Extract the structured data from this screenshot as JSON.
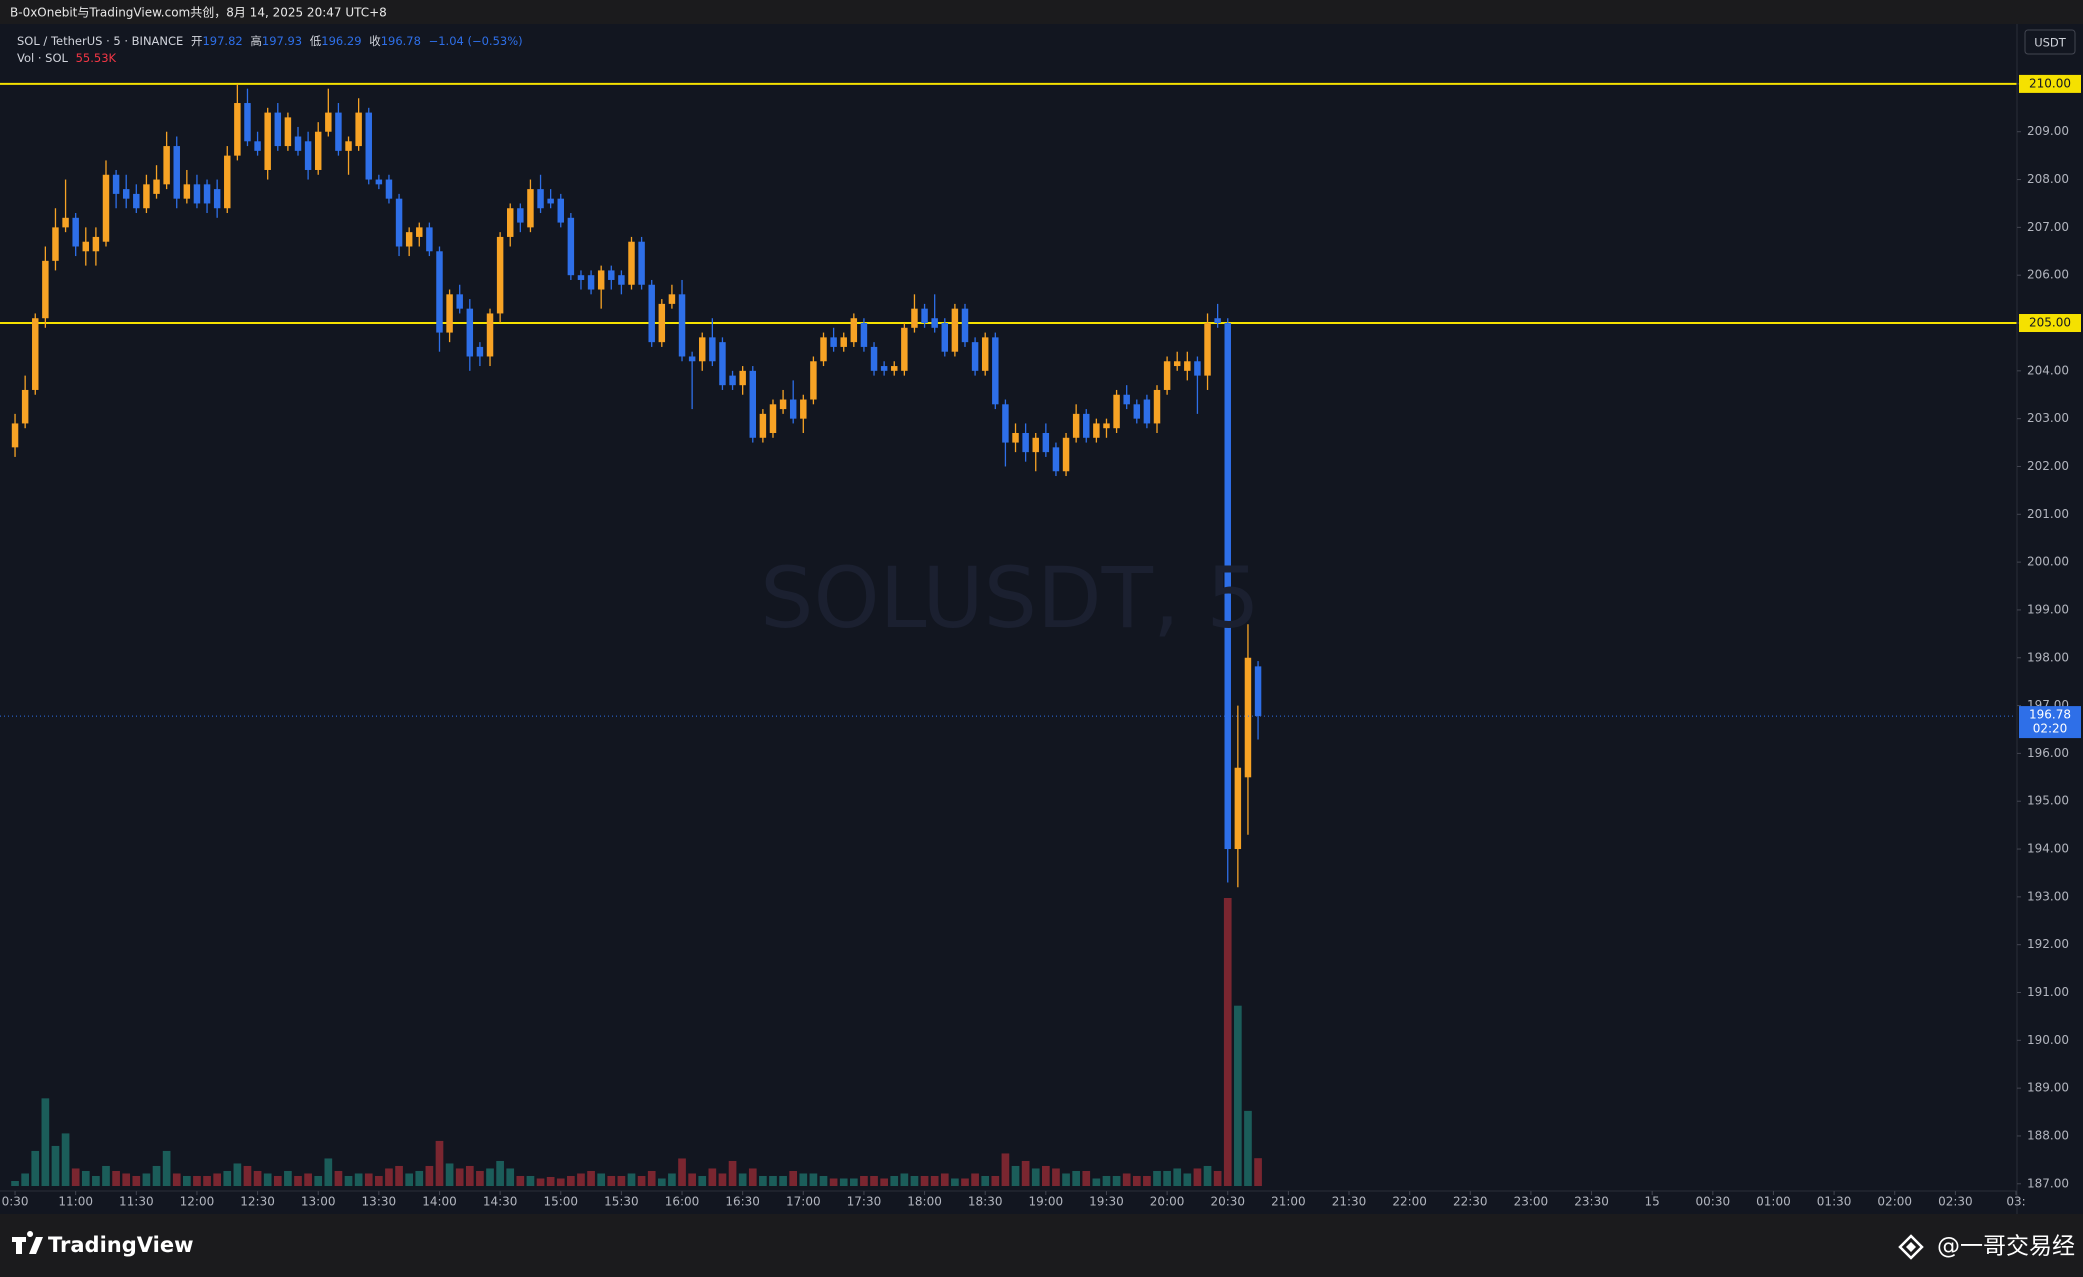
{
  "header": {
    "text": "B-0xOnebit与TradingView.com共创，8月 14, 2025 20:47 UTC+8"
  },
  "legend": {
    "symbol": "SOL / TetherUS · 5 · BINANCE",
    "open_label": "开",
    "open": 197.82,
    "high_label": "高",
    "high": 197.93,
    "low_label": "低",
    "low": 196.29,
    "close_label": "收",
    "close": 196.78,
    "change": "−1.04 (−0.53%)",
    "vol_label": "Vol · SOL",
    "vol": "55.53K"
  },
  "footer": {
    "brand": "TradingView",
    "author": "@一哥交易经"
  },
  "chart_data": {
    "type": "candlestick",
    "watermark": "SOLUSDT, 5",
    "currency": "USDT",
    "up_color": "#f7a325",
    "down_color": "#2e6fe8",
    "vol_up_color": "#1b5d5a",
    "vol_down_color": "#7a2630",
    "xlim": [
      628,
      1620
    ],
    "xticks": [
      {
        "value": 630,
        "label": "0:30"
      },
      {
        "value": 660,
        "label": "11:00"
      },
      {
        "value": 690,
        "label": "11:30"
      },
      {
        "value": 720,
        "label": "12:00"
      },
      {
        "value": 750,
        "label": "12:30"
      },
      {
        "value": 780,
        "label": "13:00"
      },
      {
        "value": 810,
        "label": "13:30"
      },
      {
        "value": 840,
        "label": "14:00"
      },
      {
        "value": 870,
        "label": "14:30"
      },
      {
        "value": 900,
        "label": "15:00"
      },
      {
        "value": 930,
        "label": "15:30"
      },
      {
        "value": 960,
        "label": "16:00"
      },
      {
        "value": 990,
        "label": "16:30"
      },
      {
        "value": 1020,
        "label": "17:00"
      },
      {
        "value": 1050,
        "label": "17:30"
      },
      {
        "value": 1080,
        "label": "18:00"
      },
      {
        "value": 1110,
        "label": "18:30"
      },
      {
        "value": 1140,
        "label": "19:00"
      },
      {
        "value": 1170,
        "label": "19:30"
      },
      {
        "value": 1200,
        "label": "20:00"
      },
      {
        "value": 1230,
        "label": "20:30"
      },
      {
        "value": 1260,
        "label": "21:00"
      },
      {
        "value": 1290,
        "label": "21:30"
      },
      {
        "value": 1320,
        "label": "22:00"
      },
      {
        "value": 1350,
        "label": "22:30"
      },
      {
        "value": 1380,
        "label": "23:00"
      },
      {
        "value": 1410,
        "label": "23:30"
      },
      {
        "value": 1440,
        "label": "15"
      },
      {
        "value": 1470,
        "label": "00:30"
      },
      {
        "value": 1500,
        "label": "01:00"
      },
      {
        "value": 1530,
        "label": "01:30"
      },
      {
        "value": 1560,
        "label": "02:00"
      },
      {
        "value": 1590,
        "label": "02:30"
      },
      {
        "value": 1620,
        "label": "03:"
      }
    ],
    "ylim": [
      186.87,
      211.19
    ],
    "yticks": [
      {
        "value": 187,
        "label": "187.00"
      },
      {
        "value": 188,
        "label": "188.00"
      },
      {
        "value": 189,
        "label": "189.00"
      },
      {
        "value": 190,
        "label": "190.00"
      },
      {
        "value": 191,
        "label": "191.00"
      },
      {
        "value": 192,
        "label": "192.00"
      },
      {
        "value": 193,
        "label": "193.00"
      },
      {
        "value": 194,
        "label": "194.00"
      },
      {
        "value": 195,
        "label": "195.00"
      },
      {
        "value": 196,
        "label": "196.00"
      },
      {
        "value": 197,
        "label": "197.00"
      },
      {
        "value": 198,
        "label": "198.00"
      },
      {
        "value": 199,
        "label": "199.00"
      },
      {
        "value": 200,
        "label": "200.00"
      },
      {
        "value": 201,
        "label": "201.00"
      },
      {
        "value": 202,
        "label": "202.00"
      },
      {
        "value": 203,
        "label": "203.00"
      },
      {
        "value": 204,
        "label": "204.00"
      },
      {
        "value": 205,
        "label": "205.00"
      },
      {
        "value": 206,
        "label": "206.00"
      },
      {
        "value": 207,
        "label": "207.00"
      },
      {
        "value": 208,
        "label": "208.00"
      },
      {
        "value": 209,
        "label": "209.00"
      },
      {
        "value": 210,
        "label": "210.00"
      }
    ],
    "hlines": [
      {
        "value": 210,
        "label": "210.00",
        "color": "#f5e100"
      },
      {
        "value": 205,
        "label": "205.00",
        "color": "#f5e100"
      }
    ],
    "price_label": {
      "value": 196.78,
      "label": "196.78",
      "countdown": "02:20"
    },
    "x": [
      630,
      635,
      640,
      645,
      650,
      655,
      660,
      665,
      670,
      675,
      680,
      685,
      690,
      695,
      700,
      705,
      710,
      715,
      720,
      725,
      730,
      735,
      740,
      745,
      750,
      755,
      760,
      765,
      770,
      775,
      780,
      785,
      790,
      795,
      800,
      805,
      810,
      815,
      820,
      825,
      830,
      835,
      840,
      845,
      850,
      855,
      860,
      865,
      870,
      875,
      880,
      885,
      890,
      895,
      900,
      905,
      910,
      915,
      920,
      925,
      930,
      935,
      940,
      945,
      950,
      955,
      960,
      965,
      970,
      975,
      980,
      985,
      990,
      995,
      1000,
      1005,
      1010,
      1015,
      1020,
      1025,
      1030,
      1035,
      1040,
      1045,
      1050,
      1055,
      1060,
      1065,
      1070,
      1075,
      1080,
      1085,
      1090,
      1095,
      1100,
      1105,
      1110,
      1115,
      1120,
      1125,
      1130,
      1135,
      1140,
      1145,
      1150,
      1155,
      1160,
      1165,
      1170,
      1175,
      1180,
      1185,
      1190,
      1195,
      1200,
      1205,
      1210,
      1215,
      1220,
      1225,
      1230,
      1235,
      1240,
      1245
    ],
    "ohlc": [
      [
        202.4,
        203.1,
        202.2,
        202.9
      ],
      [
        202.9,
        203.9,
        202.8,
        203.6
      ],
      [
        203.6,
        205.2,
        203.5,
        205.1
      ],
      [
        205.1,
        206.6,
        204.9,
        206.3
      ],
      [
        206.3,
        207.4,
        206.1,
        207.0
      ],
      [
        207.0,
        208.0,
        206.9,
        207.2
      ],
      [
        207.2,
        207.3,
        206.4,
        206.6
      ],
      [
        206.5,
        207.0,
        206.2,
        206.7
      ],
      [
        206.5,
        207.0,
        206.2,
        206.8
      ],
      [
        206.7,
        208.4,
        206.6,
        208.1
      ],
      [
        208.1,
        208.2,
        207.4,
        207.7
      ],
      [
        207.8,
        208.1,
        207.4,
        207.6
      ],
      [
        207.7,
        207.9,
        207.3,
        207.4
      ],
      [
        207.4,
        208.1,
        207.3,
        207.9
      ],
      [
        207.7,
        208.3,
        207.6,
        208.0
      ],
      [
        207.9,
        209.0,
        207.8,
        208.7
      ],
      [
        208.7,
        208.9,
        207.4,
        207.6
      ],
      [
        207.6,
        208.2,
        207.5,
        207.9
      ],
      [
        207.9,
        208.1,
        207.4,
        207.5
      ],
      [
        207.9,
        208.0,
        207.3,
        207.5
      ],
      [
        207.8,
        208.0,
        207.2,
        207.4
      ],
      [
        207.4,
        208.7,
        207.3,
        208.5
      ],
      [
        208.5,
        210.0,
        208.4,
        209.6
      ],
      [
        209.6,
        209.9,
        208.7,
        208.8
      ],
      [
        208.8,
        209.0,
        208.5,
        208.6
      ],
      [
        208.2,
        209.5,
        208.0,
        209.4
      ],
      [
        209.4,
        209.6,
        208.6,
        208.7
      ],
      [
        208.7,
        209.4,
        208.6,
        209.3
      ],
      [
        208.9,
        209.1,
        208.5,
        208.6
      ],
      [
        208.8,
        209.0,
        208.0,
        208.2
      ],
      [
        208.2,
        209.2,
        208.1,
        209.0
      ],
      [
        209.0,
        209.9,
        208.9,
        209.4
      ],
      [
        209.4,
        209.6,
        208.5,
        208.6
      ],
      [
        208.6,
        208.9,
        208.1,
        208.8
      ],
      [
        208.7,
        209.7,
        208.6,
        209.4
      ],
      [
        209.4,
        209.5,
        207.9,
        208.0
      ],
      [
        208.0,
        208.1,
        207.8,
        207.9
      ],
      [
        208.0,
        208.1,
        207.5,
        207.6
      ],
      [
        207.6,
        207.7,
        206.4,
        206.6
      ],
      [
        206.6,
        207.0,
        206.4,
        206.9
      ],
      [
        206.8,
        207.1,
        206.6,
        207.0
      ],
      [
        207.0,
        207.1,
        206.4,
        206.5
      ],
      [
        206.5,
        206.6,
        204.4,
        204.8
      ],
      [
        204.8,
        205.7,
        204.6,
        205.6
      ],
      [
        205.6,
        205.8,
        205.2,
        205.3
      ],
      [
        205.3,
        205.5,
        204.0,
        204.3
      ],
      [
        204.5,
        204.6,
        204.1,
        204.3
      ],
      [
        204.3,
        205.3,
        204.1,
        205.2
      ],
      [
        205.2,
        206.9,
        205.0,
        206.8
      ],
      [
        206.8,
        207.5,
        206.6,
        207.4
      ],
      [
        207.4,
        207.5,
        206.9,
        207.1
      ],
      [
        207.0,
        208.0,
        206.9,
        207.8
      ],
      [
        207.8,
        208.1,
        207.3,
        207.4
      ],
      [
        207.6,
        207.8,
        207.4,
        207.5
      ],
      [
        207.6,
        207.7,
        207.0,
        207.1
      ],
      [
        207.2,
        207.3,
        205.9,
        206.0
      ],
      [
        206.0,
        206.1,
        205.7,
        205.9
      ],
      [
        206.0,
        206.1,
        205.6,
        205.7
      ],
      [
        205.7,
        206.2,
        205.3,
        206.1
      ],
      [
        206.1,
        206.2,
        205.7,
        205.9
      ],
      [
        206.0,
        206.1,
        205.6,
        205.8
      ],
      [
        205.8,
        206.8,
        205.7,
        206.7
      ],
      [
        206.7,
        206.8,
        205.7,
        205.8
      ],
      [
        205.8,
        205.9,
        204.5,
        204.6
      ],
      [
        204.6,
        205.5,
        204.5,
        205.4
      ],
      [
        205.4,
        205.8,
        205.3,
        205.6
      ],
      [
        205.6,
        205.9,
        204.2,
        204.3
      ],
      [
        204.3,
        204.4,
        203.2,
        204.2
      ],
      [
        204.2,
        204.8,
        204.0,
        204.7
      ],
      [
        204.7,
        205.1,
        204.1,
        204.2
      ],
      [
        204.6,
        204.7,
        203.6,
        203.7
      ],
      [
        203.9,
        204.0,
        203.6,
        203.7
      ],
      [
        203.7,
        204.1,
        203.5,
        204.0
      ],
      [
        204.0,
        204.1,
        202.5,
        202.6
      ],
      [
        202.6,
        203.2,
        202.5,
        203.1
      ],
      [
        202.7,
        203.4,
        202.6,
        203.3
      ],
      [
        203.2,
        203.6,
        203.1,
        203.4
      ],
      [
        203.4,
        203.8,
        202.9,
        203.0
      ],
      [
        203.0,
        203.5,
        202.7,
        203.4
      ],
      [
        203.4,
        204.3,
        203.3,
        204.2
      ],
      [
        204.2,
        204.8,
        204.1,
        204.7
      ],
      [
        204.7,
        204.9,
        204.4,
        204.5
      ],
      [
        204.5,
        204.8,
        204.4,
        204.7
      ],
      [
        204.6,
        205.2,
        204.5,
        205.1
      ],
      [
        205.0,
        205.1,
        204.4,
        204.5
      ],
      [
        204.5,
        204.6,
        203.9,
        204.0
      ],
      [
        204.1,
        204.2,
        203.9,
        204.0
      ],
      [
        204.0,
        204.2,
        203.9,
        204.1
      ],
      [
        204.0,
        205.0,
        203.9,
        204.9
      ],
      [
        204.9,
        205.6,
        204.8,
        205.3
      ],
      [
        205.3,
        205.4,
        204.9,
        205.0
      ],
      [
        205.1,
        205.6,
        204.8,
        204.9
      ],
      [
        205.0,
        205.1,
        204.3,
        204.4
      ],
      [
        204.4,
        205.4,
        204.3,
        205.3
      ],
      [
        205.3,
        205.4,
        204.5,
        204.6
      ],
      [
        204.6,
        204.7,
        203.9,
        204.0
      ],
      [
        204.0,
        204.8,
        203.9,
        204.7
      ],
      [
        204.7,
        204.8,
        203.2,
        203.3
      ],
      [
        203.3,
        203.4,
        202.0,
        202.5
      ],
      [
        202.5,
        202.9,
        202.3,
        202.7
      ],
      [
        202.7,
        202.9,
        202.1,
        202.3
      ],
      [
        202.3,
        202.7,
        201.9,
        202.6
      ],
      [
        202.7,
        202.9,
        202.2,
        202.3
      ],
      [
        202.4,
        202.5,
        201.8,
        201.9
      ],
      [
        201.9,
        202.7,
        201.8,
        202.6
      ],
      [
        202.6,
        203.3,
        202.5,
        203.1
      ],
      [
        203.1,
        203.2,
        202.5,
        202.6
      ],
      [
        202.6,
        203.0,
        202.5,
        202.9
      ],
      [
        202.8,
        203.0,
        202.6,
        202.9
      ],
      [
        202.8,
        203.6,
        202.7,
        203.5
      ],
      [
        203.5,
        203.7,
        203.2,
        203.3
      ],
      [
        203.3,
        203.4,
        202.9,
        203.0
      ],
      [
        203.4,
        203.5,
        202.8,
        202.9
      ],
      [
        202.9,
        203.7,
        202.7,
        203.6
      ],
      [
        203.6,
        204.3,
        203.5,
        204.2
      ],
      [
        204.1,
        204.4,
        204.0,
        204.2
      ],
      [
        204.0,
        204.4,
        203.8,
        204.2
      ],
      [
        204.2,
        204.3,
        203.1,
        203.9
      ],
      [
        203.9,
        205.2,
        203.6,
        205.0
      ],
      [
        205.1,
        205.4,
        204.9,
        205.0
      ],
      [
        205.0,
        205.1,
        193.3,
        194.0
      ],
      [
        194.0,
        197.0,
        193.2,
        195.7
      ],
      [
        195.5,
        198.7,
        194.3,
        198.0
      ],
      [
        197.82,
        197.93,
        196.29,
        196.78
      ]
    ],
    "volume": [
      10,
      25,
      70,
      175,
      80,
      105,
      35,
      30,
      20,
      40,
      30,
      25,
      20,
      25,
      40,
      70,
      25,
      20,
      20,
      20,
      25,
      30,
      45,
      40,
      30,
      25,
      20,
      30,
      20,
      25,
      20,
      55,
      30,
      20,
      25,
      25,
      20,
      35,
      40,
      25,
      30,
      40,
      90,
      45,
      35,
      40,
      30,
      35,
      50,
      35,
      20,
      20,
      15,
      18,
      15,
      20,
      25,
      30,
      25,
      20,
      20,
      25,
      20,
      30,
      15,
      25,
      55,
      25,
      20,
      35,
      25,
      50,
      25,
      35,
      20,
      20,
      20,
      30,
      25,
      25,
      20,
      15,
      15,
      15,
      20,
      20,
      15,
      20,
      25,
      20,
      20,
      20,
      25,
      15,
      15,
      25,
      20,
      20,
      65,
      40,
      50,
      35,
      40,
      35,
      25,
      30,
      30,
      15,
      20,
      20,
      25,
      20,
      20,
      30,
      30,
      35,
      25,
      35,
      40,
      30,
      575,
      360,
      150,
      55.53
    ]
  }
}
